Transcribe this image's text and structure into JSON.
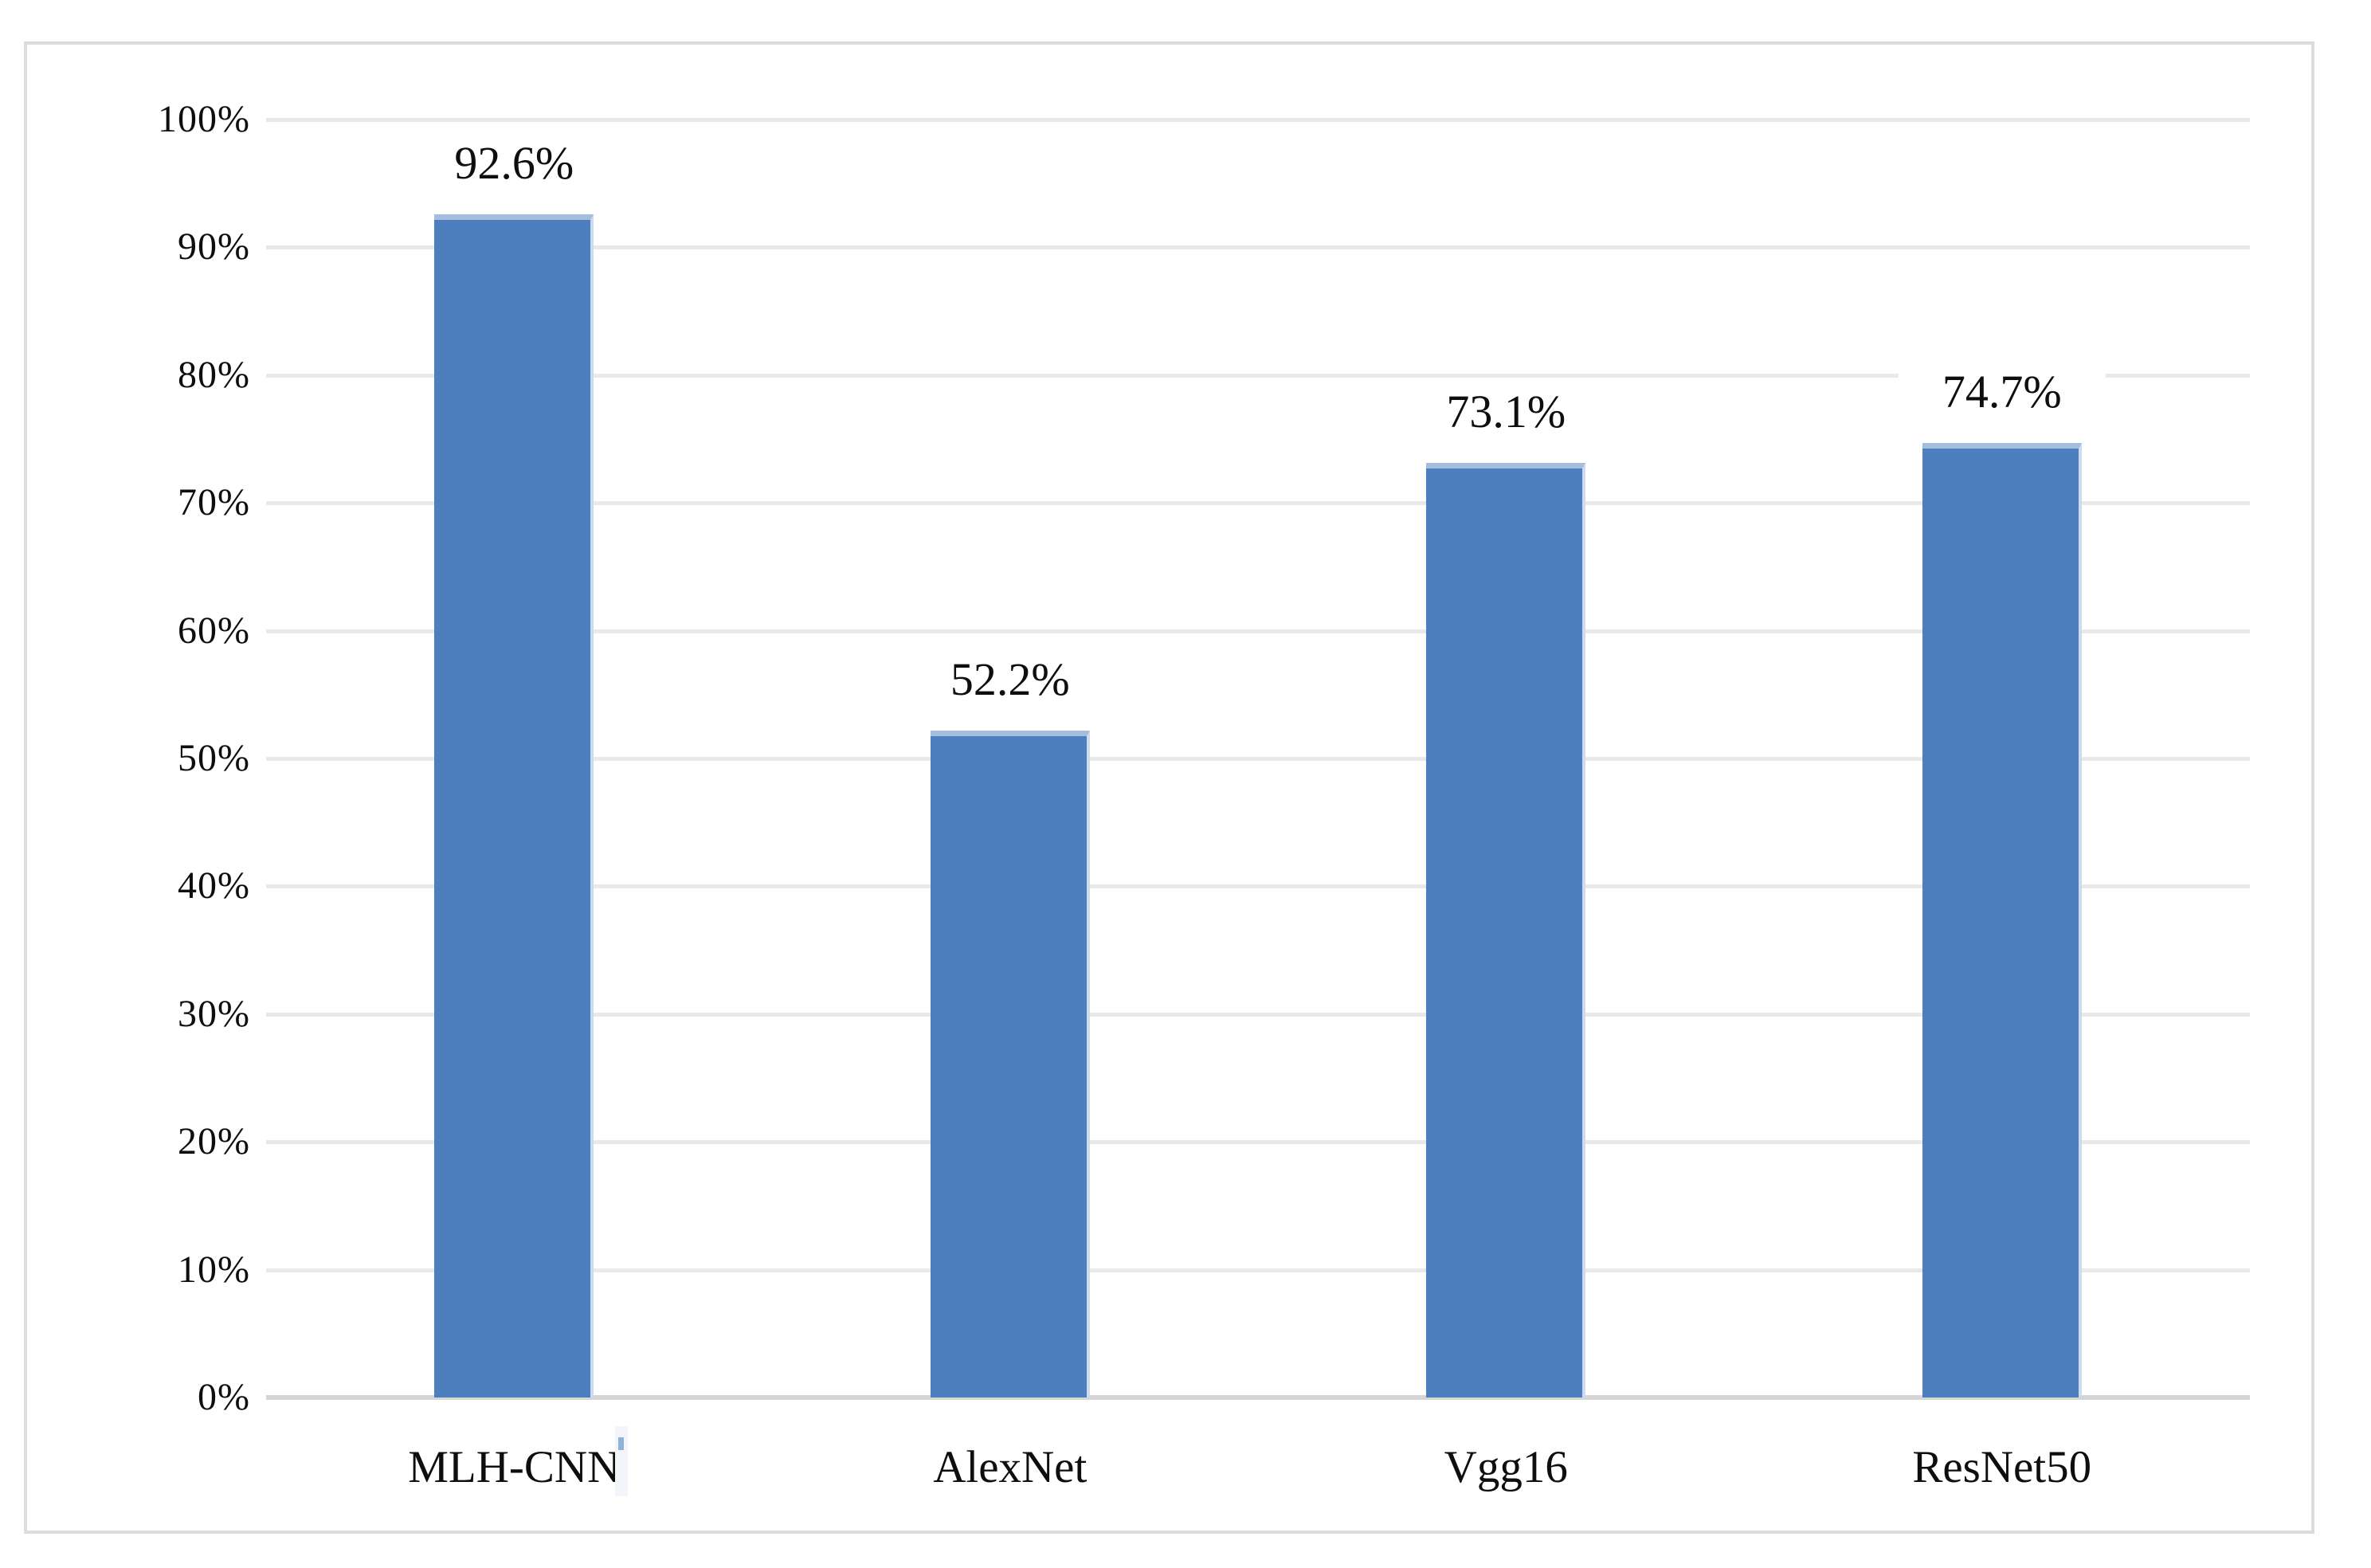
{
  "chart_data": {
    "type": "bar",
    "categories": [
      "MLH-CNN",
      "AlexNet",
      "Vgg16",
      "ResNet50"
    ],
    "values": [
      92.6,
      52.2,
      73.1,
      74.7
    ],
    "value_labels": [
      "92.6%",
      "52.2%",
      "73.1%",
      "74.7%"
    ],
    "title": "",
    "xlabel": "",
    "ylabel": "",
    "y_axis": {
      "min": 0,
      "max": 100,
      "step": 10,
      "tick_labels": [
        "0%",
        "10%",
        "20%",
        "30%",
        "40%",
        "50%",
        "60%",
        "70%",
        "80%",
        "90%",
        "100%"
      ]
    },
    "grid": true,
    "legend": "none",
    "colors": {
      "bar_fill": "#4D7EBE",
      "bar_top_highlight": "#A4BDDC",
      "bar_right_edge": "#CCDCEE",
      "gridline": "#E9E9E9",
      "axis_line": "#D5D5D5",
      "frame_border": "#DCDCDC",
      "label_text": "#0E0E0E",
      "artifact_blue": "#8FB2D8",
      "artifact_streak": "#F2F6FA"
    }
  }
}
